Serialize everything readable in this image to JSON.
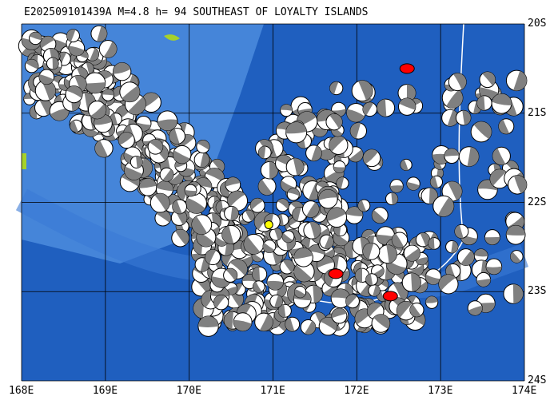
{
  "title": "E202509101439A M=4.8 h= 94 SOUTHEAST OF LOYALTY ISLANDS",
  "map": {
    "lon_range": [
      168,
      174
    ],
    "lat_range": [
      -24,
      -20
    ],
    "x_labels": [
      "168E",
      "169E",
      "170E",
      "171E",
      "172E",
      "173E",
      "174E"
    ],
    "y_labels": [
      "20S",
      "21S",
      "22S",
      "23S",
      "24S"
    ],
    "colors": {
      "ocean_deep": "#1f5fbf",
      "ocean_shallow": "#4f8fe0",
      "land": "#a6d12b",
      "highlight_event": "#ff0000",
      "main_event": "#ffff00",
      "trench_line": "#ffffff"
    },
    "highlighted_events": [
      {
        "lon": 171.75,
        "lat": -22.8
      },
      {
        "lon": 172.4,
        "lat": -23.05
      },
      {
        "lon": 172.6,
        "lat": -20.5
      }
    ],
    "main_event": {
      "lon": 170.95,
      "lat": -22.25
    }
  }
}
